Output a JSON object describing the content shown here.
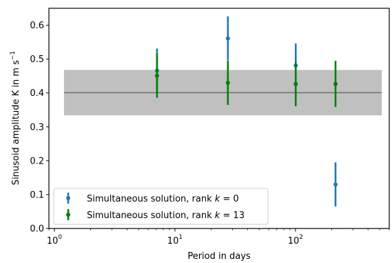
{
  "chart_data": {
    "type": "scatter",
    "xlabel": "Period in days",
    "ylabel_main": "Sinusoid amplitude K in m s",
    "ylabel_sup": "−1",
    "xscale": "log",
    "xlim": [
      0.9,
      600
    ],
    "ylim": [
      0.0,
      0.65
    ],
    "x_ticks": [
      {
        "value": 1,
        "base": "10",
        "exp": "0"
      },
      {
        "value": 10,
        "base": "10",
        "exp": "1"
      },
      {
        "value": 100,
        "base": "10",
        "exp": "2"
      }
    ],
    "y_ticks": [
      {
        "value": 0.0,
        "label": "0.0"
      },
      {
        "value": 0.1,
        "label": "0.1"
      },
      {
        "value": 0.2,
        "label": "0.2"
      },
      {
        "value": 0.3,
        "label": "0.3"
      },
      {
        "value": 0.4,
        "label": "0.4"
      },
      {
        "value": 0.5,
        "label": "0.5"
      },
      {
        "value": 0.6,
        "label": "0.6"
      }
    ],
    "reference_band": {
      "x_range": [
        1.2,
        520
      ],
      "center": 0.401,
      "lower": 0.334,
      "upper": 0.468,
      "line_color": "#808080",
      "band_color": "#c0c0c0"
    },
    "legend_position": "lower-left",
    "series": [
      {
        "name_prefix": "Simultaneous solution, rank ",
        "name_var": "k",
        "name_suffix": " = 0",
        "color": "#1f77b4",
        "points": [
          {
            "x": 7.1,
            "y": 0.466,
            "err": 0.065
          },
          {
            "x": 27.5,
            "y": 0.561,
            "err": 0.065
          },
          {
            "x": 100.5,
            "y": 0.481,
            "err": 0.065
          },
          {
            "x": 215,
            "y": 0.13,
            "err": 0.065
          }
        ]
      },
      {
        "name_prefix": "Simultaneous solution, rank ",
        "name_var": "k",
        "name_suffix": " = 13",
        "color": "#008000",
        "points": [
          {
            "x": 7.1,
            "y": 0.451,
            "err": 0.065
          },
          {
            "x": 27.5,
            "y": 0.43,
            "err": 0.065
          },
          {
            "x": 100.5,
            "y": 0.426,
            "err": 0.065
          },
          {
            "x": 215,
            "y": 0.427,
            "err": 0.068
          }
        ]
      }
    ]
  }
}
